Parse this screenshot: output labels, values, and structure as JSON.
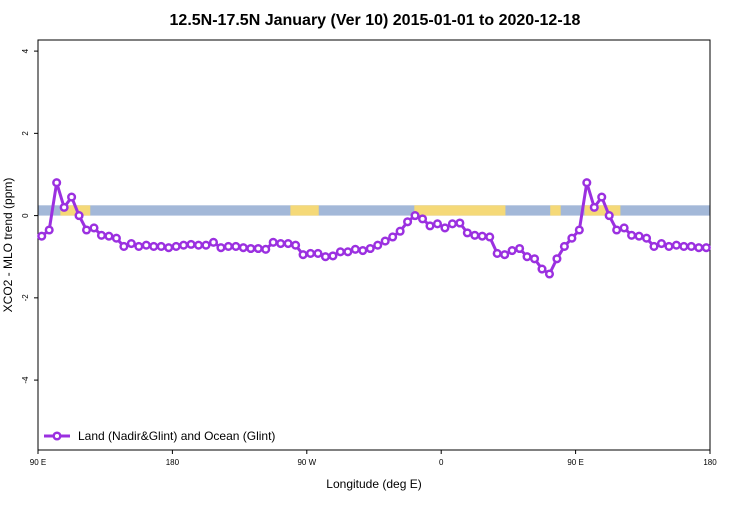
{
  "chart_data": {
    "type": "line",
    "title": "12.5N-17.5N January (Ver 10)   2015-01-01 to 2020-12-18",
    "x_label": "Longitude (deg E)",
    "y_label": "XCO2 - MLO trend (ppm)",
    "xlim": [
      90,
      540
    ],
    "ylim": [
      -5.7,
      4.27
    ],
    "xticks": [
      {
        "value": 90,
        "label": "90 E"
      },
      180,
      {
        "value": 270,
        "label": "90 W"
      },
      {
        "value": 360,
        "label": "0"
      },
      {
        "value": 450,
        "label": "90 E"
      },
      {
        "value": 540,
        "label": "180"
      }
    ],
    "yticks": [
      -4,
      -2,
      0,
      2,
      4
    ],
    "legend": "bottom-left",
    "surface_band": {
      "ylim": [
        0,
        0.25
      ],
      "ocean_color": "#a3b8d8",
      "land_color": "#f5d978",
      "land_ranges": [
        [
          105,
          125
        ],
        [
          259,
          278
        ],
        [
          342,
          403
        ],
        [
          433,
          440
        ],
        [
          456,
          480
        ]
      ]
    },
    "x": [
      92.5,
      97.5,
      102.5,
      107.5,
      112.5,
      117.5,
      122.5,
      127.5,
      132.5,
      137.5,
      142.5,
      147.5,
      152.5,
      157.5,
      162.5,
      167.5,
      172.5,
      177.5,
      182.5,
      187.5,
      192.5,
      197.5,
      202.5,
      207.5,
      212.5,
      217.5,
      222.5,
      227.5,
      232.5,
      237.5,
      242.5,
      247.5,
      252.5,
      257.5,
      262.5,
      267.5,
      272.5,
      277.5,
      282.5,
      287.5,
      292.5,
      297.5,
      302.5,
      307.5,
      312.5,
      317.5,
      322.5,
      327.5,
      332.5,
      337.5,
      342.5,
      347.5,
      352.5,
      357.5,
      362.5,
      367.5,
      372.5,
      377.5,
      382.5,
      387.5,
      392.5,
      397.5,
      402.5,
      407.5,
      412.5,
      417.5,
      422.5,
      427.5,
      432.5,
      437.5,
      442.5,
      447.5,
      452.5,
      457.5,
      462.5,
      467.5,
      472.5,
      477.5,
      482.5,
      487.5,
      492.5,
      497.5,
      502.5,
      507.5,
      512.5,
      517.5,
      522.5,
      527.5,
      532.5,
      537.5
    ],
    "series": [
      {
        "name": "Land (Nadir&Glint) and Ocean (Glint)",
        "color": "#9b30e0",
        "values": [
          -0.5,
          -0.35,
          0.8,
          0.2,
          0.45,
          0.0,
          -0.35,
          -0.3,
          -0.48,
          -0.5,
          -0.55,
          -0.75,
          -0.68,
          -0.75,
          -0.72,
          -0.75,
          -0.75,
          -0.78,
          -0.75,
          -0.72,
          -0.7,
          -0.72,
          -0.72,
          -0.65,
          -0.78,
          -0.75,
          -0.75,
          -0.78,
          -0.8,
          -0.8,
          -0.82,
          -0.65,
          -0.68,
          -0.68,
          -0.72,
          -0.95,
          -0.92,
          -0.92,
          -1.0,
          -0.98,
          -0.88,
          -0.88,
          -0.82,
          -0.85,
          -0.8,
          -0.72,
          -0.62,
          -0.52,
          -0.38,
          -0.15,
          0.0,
          -0.08,
          -0.25,
          -0.2,
          -0.3,
          -0.2,
          -0.18,
          -0.42,
          -0.48,
          -0.5,
          -0.52,
          -0.92,
          -0.95,
          -0.85,
          -0.8,
          -1.0,
          -1.05,
          -1.3,
          -1.42,
          -1.05,
          -0.75,
          -0.55,
          -0.35,
          0.8,
          0.2,
          0.45,
          0.0,
          -0.35,
          -0.3,
          -0.48,
          -0.5,
          -0.55,
          -0.75,
          -0.68,
          -0.75,
          -0.72,
          -0.75,
          -0.75,
          -0.78,
          -0.78
        ]
      }
    ]
  }
}
